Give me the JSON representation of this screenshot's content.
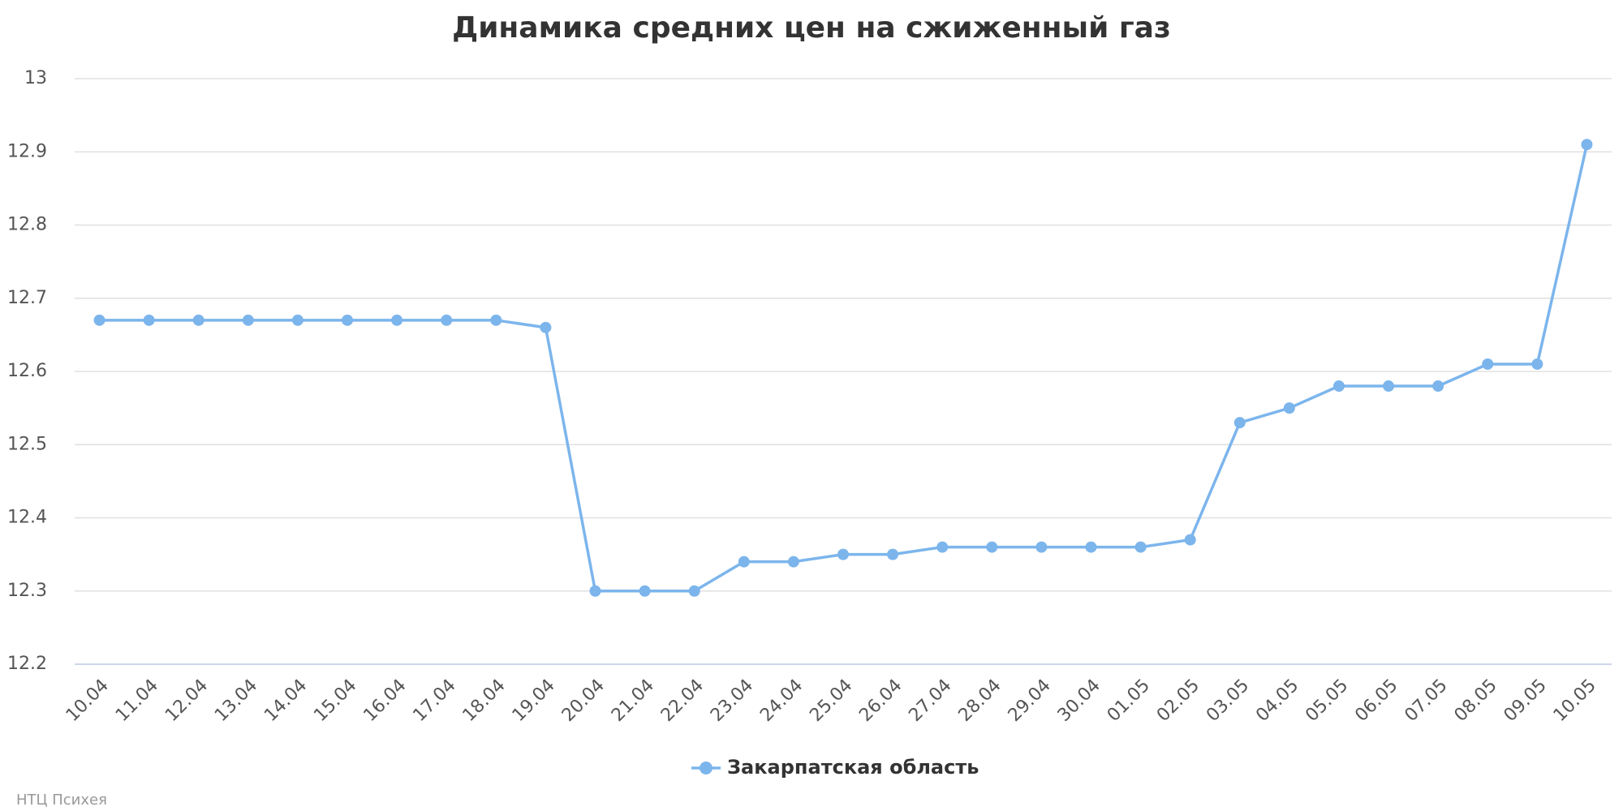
{
  "chart_data": {
    "type": "line",
    "title": "Динамика средних цен на сжиженный газ",
    "categories": [
      "10.04",
      "11.04",
      "12.04",
      "13.04",
      "14.04",
      "15.04",
      "16.04",
      "17.04",
      "18.04",
      "19.04",
      "20.04",
      "21.04",
      "22.04",
      "23.04",
      "24.04",
      "25.04",
      "26.04",
      "27.04",
      "28.04",
      "29.04",
      "30.04",
      "01.05",
      "02.05",
      "03.05",
      "04.05",
      "05.05",
      "06.05",
      "07.05",
      "08.05",
      "09.05",
      "10.05"
    ],
    "series": [
      {
        "name": "Закарпатская область",
        "color": "#7cb5ec",
        "values": [
          12.67,
          12.67,
          12.67,
          12.67,
          12.67,
          12.67,
          12.67,
          12.67,
          12.67,
          12.66,
          12.3,
          12.3,
          12.3,
          12.34,
          12.34,
          12.35,
          12.35,
          12.36,
          12.36,
          12.36,
          12.36,
          12.36,
          12.37,
          12.53,
          12.55,
          12.58,
          12.58,
          12.58,
          12.61,
          12.61,
          12.91
        ]
      }
    ],
    "ylim": [
      12.2,
      13
    ],
    "yticks": [
      12.2,
      12.3,
      12.4,
      12.5,
      12.6,
      12.7,
      12.8,
      12.9,
      13
    ],
    "grid": true,
    "credits": "НТЦ Психея"
  }
}
